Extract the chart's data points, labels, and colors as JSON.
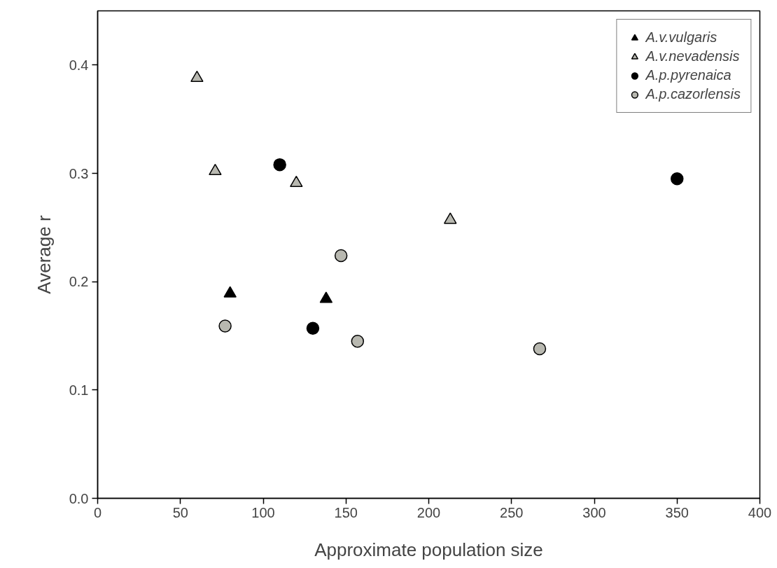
{
  "chart_data": {
    "type": "scatter",
    "xlabel": "Approximate population size",
    "ylabel": "Average r",
    "xlim": [
      0,
      400
    ],
    "xticks": [
      0,
      50,
      100,
      150,
      200,
      250,
      300,
      350,
      400
    ],
    "ylim": [
      0,
      0.45
    ],
    "yticks": [
      {
        "value": 0,
        "label": "0.0"
      },
      0.1,
      0.2,
      0.3,
      0.4
    ],
    "grid": false,
    "legend": "top right",
    "series": [
      {
        "name": "A.v.vulgaris",
        "color": "#000000",
        "marker": "triangle",
        "x": [
          80,
          138
        ],
        "values": [
          0.189,
          0.184
        ]
      },
      {
        "name": "A.v.nevadensis",
        "color": "#b8b8b0",
        "marker": "triangle",
        "x": [
          60,
          71,
          120,
          213
        ],
        "values": [
          0.388,
          0.302,
          0.291,
          0.257
        ]
      },
      {
        "name": "A.p.pyrenaica",
        "color": "#000000",
        "marker": "circle",
        "x": [
          110,
          130,
          350
        ],
        "values": [
          0.308,
          0.157,
          0.295
        ]
      },
      {
        "name": "A.p.cazorlensis",
        "color": "#b8b8b0",
        "marker": "circle",
        "x": [
          77,
          147,
          157,
          267
        ],
        "values": [
          0.159,
          0.224,
          0.145,
          0.138
        ]
      }
    ]
  }
}
